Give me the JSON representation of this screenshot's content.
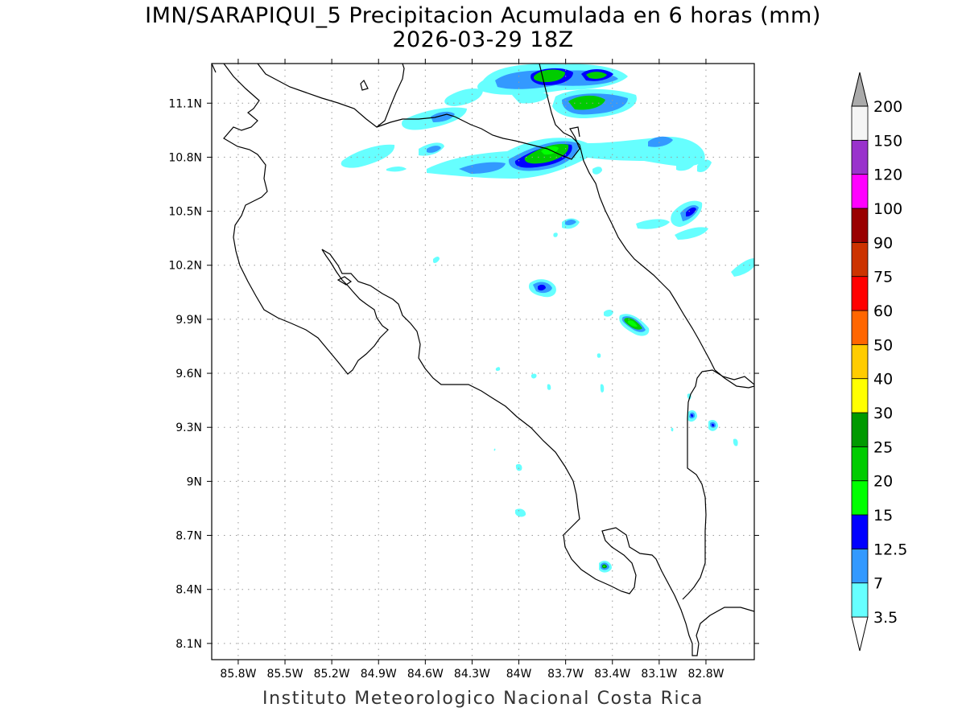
{
  "title": "IMN/SARAPIQUI_5 Precipitacion Acumulada en 6 horas (mm)",
  "subtitle": "2026-03-29 18Z",
  "credit": "Instituto Meteorologico Nacional Costa Rica",
  "map": {
    "lon_range": [
      -85.97,
      -82.49
    ],
    "lat_range": [
      8.01,
      11.32
    ],
    "lon_ticks": [
      {
        "value": -85.8,
        "label": "85.8W"
      },
      {
        "value": -85.5,
        "label": "85.5W"
      },
      {
        "value": -85.2,
        "label": "85.2W"
      },
      {
        "value": -84.9,
        "label": "84.9W"
      },
      {
        "value": -84.6,
        "label": "84.6W"
      },
      {
        "value": -84.3,
        "label": "84.3W"
      },
      {
        "value": -84.0,
        "label": "84W"
      },
      {
        "value": -83.7,
        "label": "83.7W"
      },
      {
        "value": -83.4,
        "label": "83.4W"
      },
      {
        "value": -83.1,
        "label": "83.1W"
      },
      {
        "value": -82.8,
        "label": "82.8W"
      }
    ],
    "lat_ticks": [
      {
        "value": 11.1,
        "label": "11.1N"
      },
      {
        "value": 10.8,
        "label": "10.8N"
      },
      {
        "value": 10.5,
        "label": "10.5N"
      },
      {
        "value": 10.2,
        "label": "10.2N"
      },
      {
        "value": 9.9,
        "label": "9.9N"
      },
      {
        "value": 9.6,
        "label": "9.6N"
      },
      {
        "value": 9.3,
        "label": "9.3N"
      },
      {
        "value": 9.0,
        "label": "9N"
      },
      {
        "value": 8.7,
        "label": "8.7N"
      },
      {
        "value": 8.4,
        "label": "8.4N"
      },
      {
        "value": 8.1,
        "label": "8.1N"
      }
    ],
    "grid": true
  },
  "colorbar": {
    "bins": [
      {
        "label": "3.5",
        "color": "#66ffff"
      },
      {
        "label": "7",
        "color": "#3399ff"
      },
      {
        "label": "12.5",
        "color": "#0000ff"
      },
      {
        "label": "15",
        "color": "#00ff00"
      },
      {
        "label": "20",
        "color": "#00cc00"
      },
      {
        "label": "25",
        "color": "#009900"
      },
      {
        "label": "30",
        "color": "#ffff00"
      },
      {
        "label": "40",
        "color": "#ffcc00"
      },
      {
        "label": "50",
        "color": "#ff6600"
      },
      {
        "label": "60",
        "color": "#ff0000"
      },
      {
        "label": "75",
        "color": "#cc3300"
      },
      {
        "label": "90",
        "color": "#990000"
      },
      {
        "label": "100",
        "color": "#ff00ff"
      },
      {
        "label": "120",
        "color": "#9933cc"
      },
      {
        "label": "150",
        "color": "#f5f5f5"
      },
      {
        "label": "200",
        "color": "#aaaaaa"
      }
    ]
  }
}
